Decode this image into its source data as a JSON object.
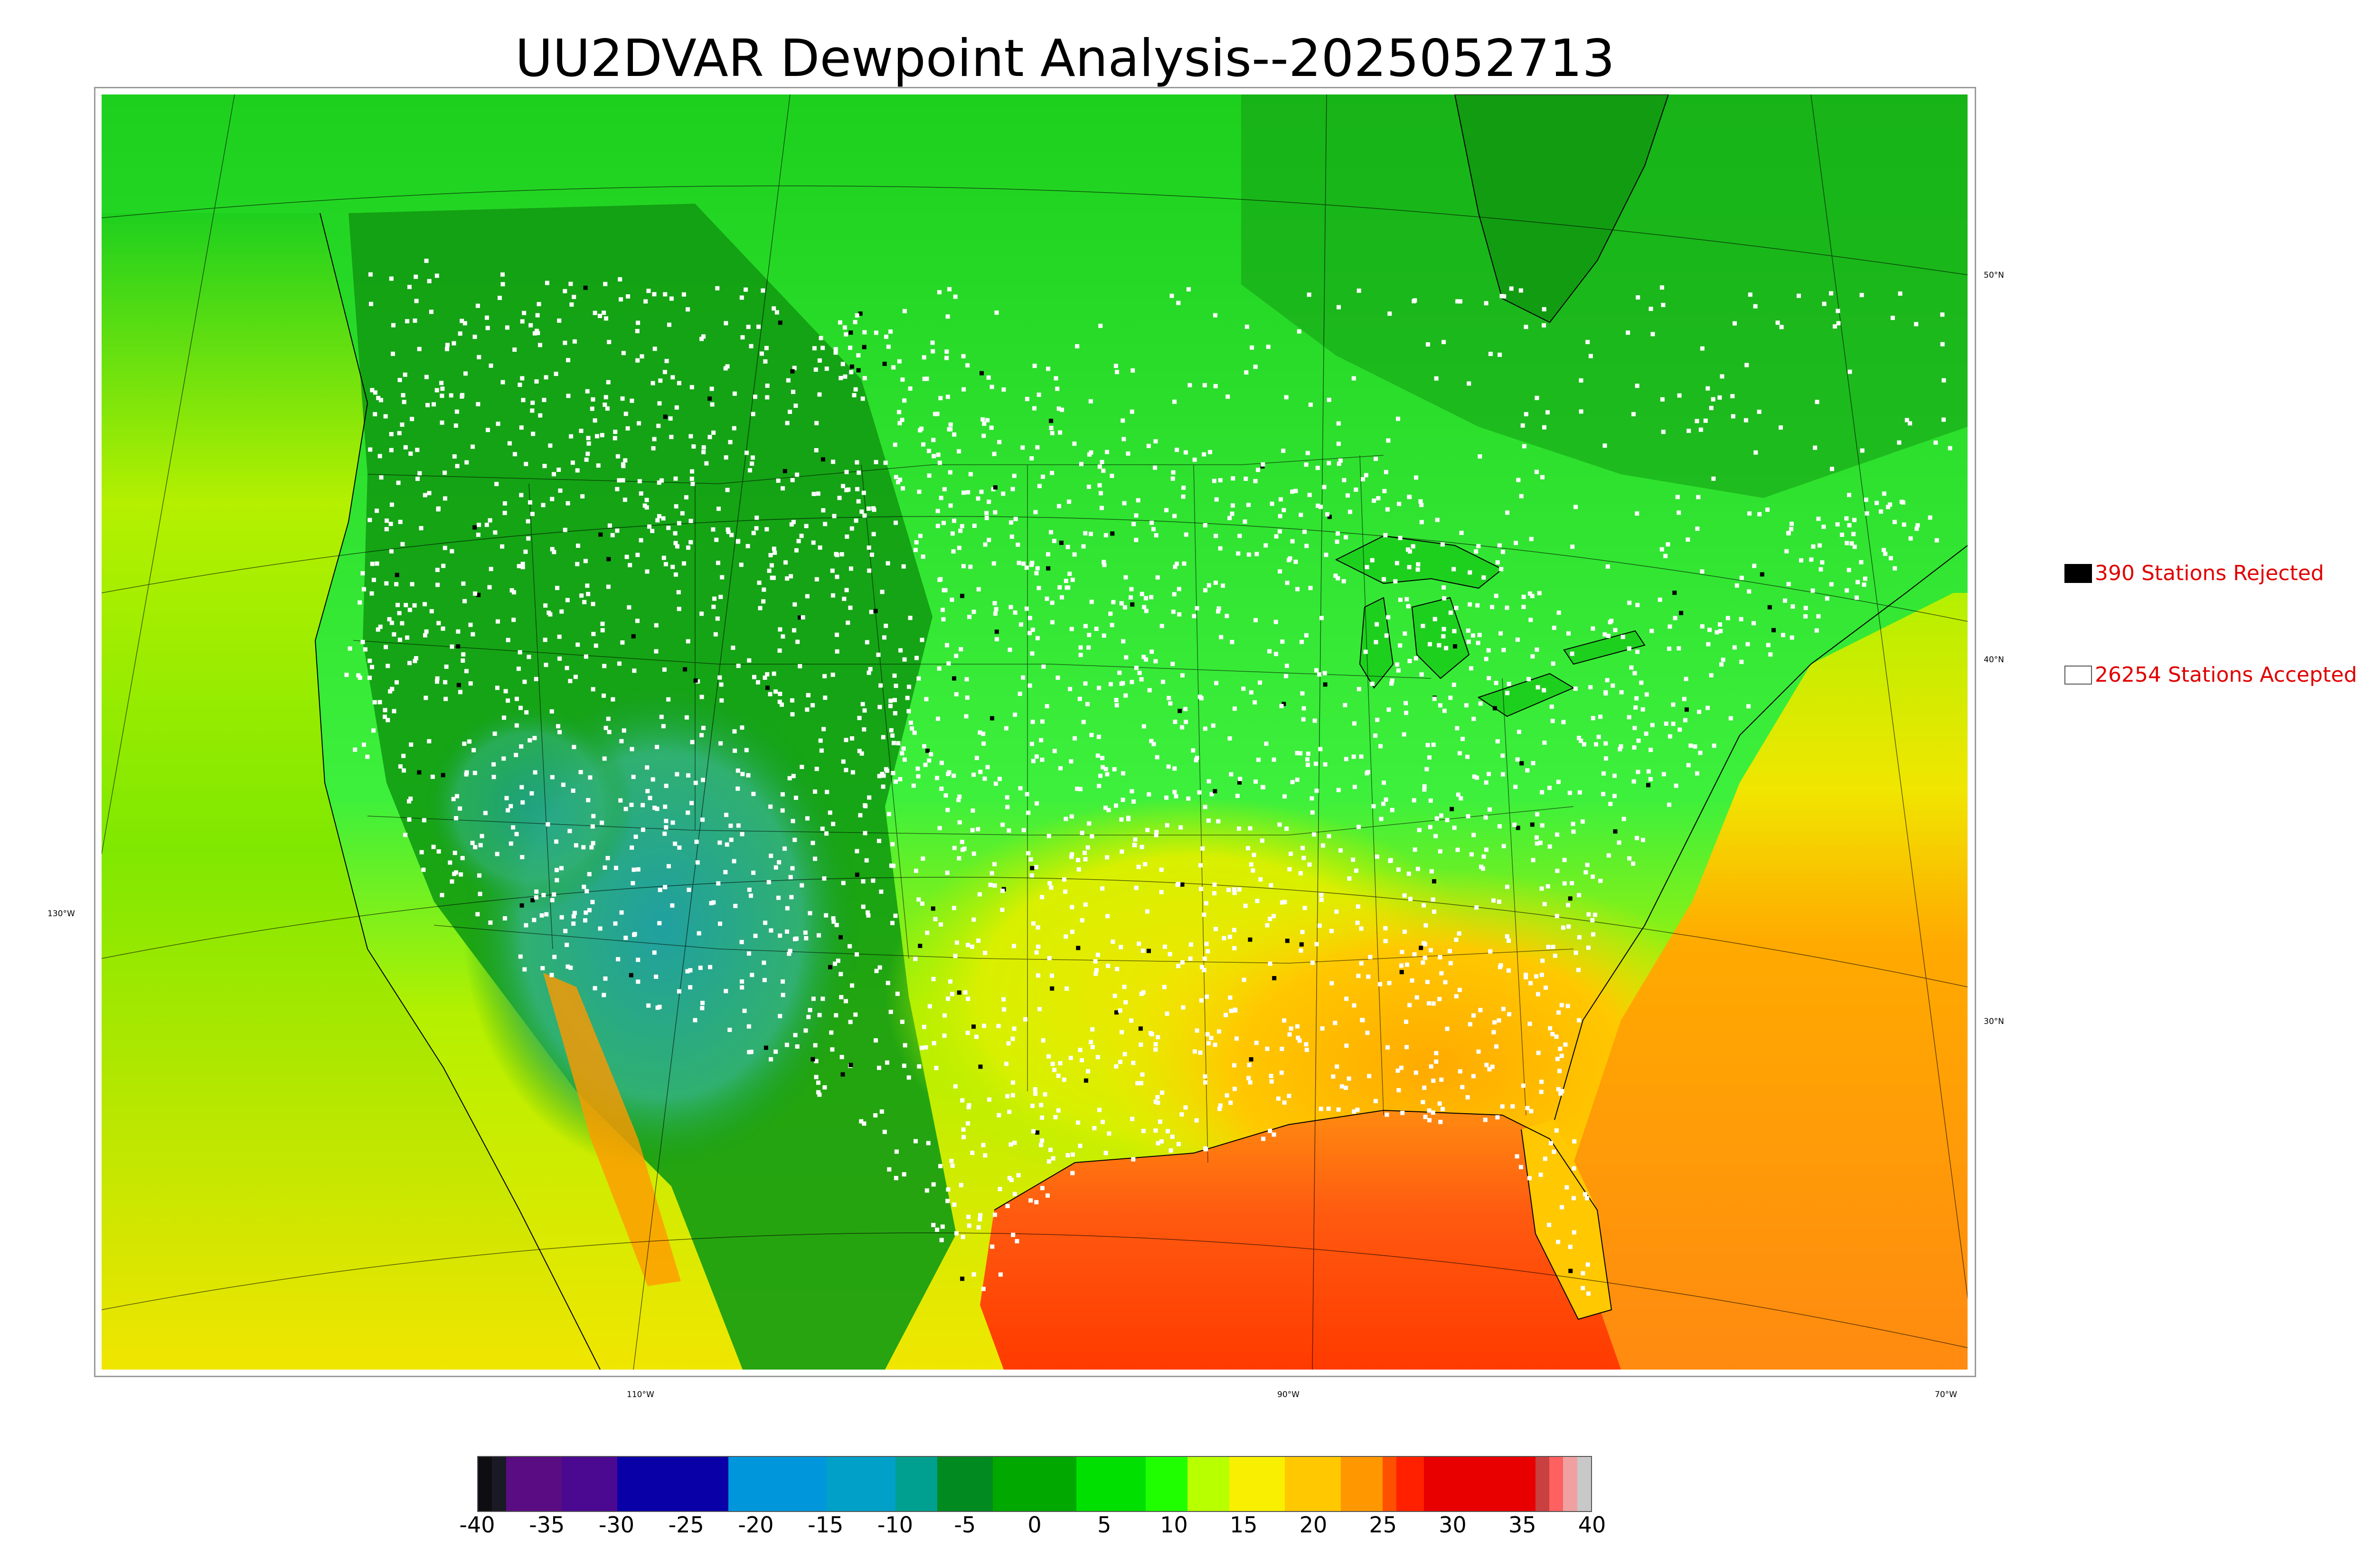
{
  "title": "UU2DVAR Dewpoint Analysis--2025052713",
  "legend": {
    "rejected": {
      "label": "390 Stations Rejected",
      "swatch_color": "#000000"
    },
    "accepted": {
      "label": "26254 Stations Accepted",
      "swatch_color": "#ffffff"
    }
  },
  "axis_labels": {
    "lat": [
      "50°N",
      "40°N",
      "30°N"
    ],
    "lon": [
      "130°W",
      "110°W",
      "90°W",
      "70°W"
    ]
  },
  "colorbar": {
    "ticks": [
      "-40",
      "-35",
      "-30",
      "-25",
      "-20",
      "-15",
      "-10",
      "-5",
      "0",
      "5",
      "10",
      "15",
      "20",
      "25",
      "30",
      "35",
      "40"
    ],
    "range": [
      -40,
      40
    ],
    "segments": [
      {
        "from": -40,
        "to": -39,
        "color": "#0d0d12"
      },
      {
        "from": -39,
        "to": -38,
        "color": "#1a1a24"
      },
      {
        "from": -38,
        "to": -34,
        "color": "#5a0d82"
      },
      {
        "from": -34,
        "to": -30,
        "color": "#4b0890"
      },
      {
        "from": -30,
        "to": -22,
        "color": "#0a00a8"
      },
      {
        "from": -22,
        "to": -15,
        "color": "#0096dc"
      },
      {
        "from": -15,
        "to": -10,
        "color": "#00a0c8"
      },
      {
        "from": -10,
        "to": -7,
        "color": "#00a090"
      },
      {
        "from": -7,
        "to": -3,
        "color": "#008a20"
      },
      {
        "from": -3,
        "to": 3,
        "color": "#00a800"
      },
      {
        "from": 3,
        "to": 8,
        "color": "#00e000"
      },
      {
        "from": 8,
        "to": 11,
        "color": "#20ff00"
      },
      {
        "from": 11,
        "to": 14,
        "color": "#b8ff00"
      },
      {
        "from": 14,
        "to": 18,
        "color": "#f8f000"
      },
      {
        "from": 18,
        "to": 22,
        "color": "#ffc800"
      },
      {
        "from": 22,
        "to": 25,
        "color": "#ff9800"
      },
      {
        "from": 25,
        "to": 26,
        "color": "#ff5000"
      },
      {
        "from": 26,
        "to": 28,
        "color": "#ff2000"
      },
      {
        "from": 28,
        "to": 36,
        "color": "#e80000"
      },
      {
        "from": 36,
        "to": 37,
        "color": "#c84040"
      },
      {
        "from": 37,
        "to": 38,
        "color": "#ff6060"
      },
      {
        "from": 38,
        "to": 39,
        "color": "#f0a0a0"
      },
      {
        "from": 39,
        "to": 40,
        "color": "#c8c8c8"
      }
    ]
  },
  "colors": {
    "green_dark": "#129c12",
    "green": "#1ed01e",
    "green_bright": "#3cf03c",
    "yellowgreen": "#b4f000",
    "yellow": "#f0e600",
    "orange": "#ffaa00",
    "orange_red": "#ff6e10",
    "red": "#ff3200",
    "teal": "#20a0a0",
    "station_accepted": "#ffffff",
    "station_rejected": "#000000"
  }
}
